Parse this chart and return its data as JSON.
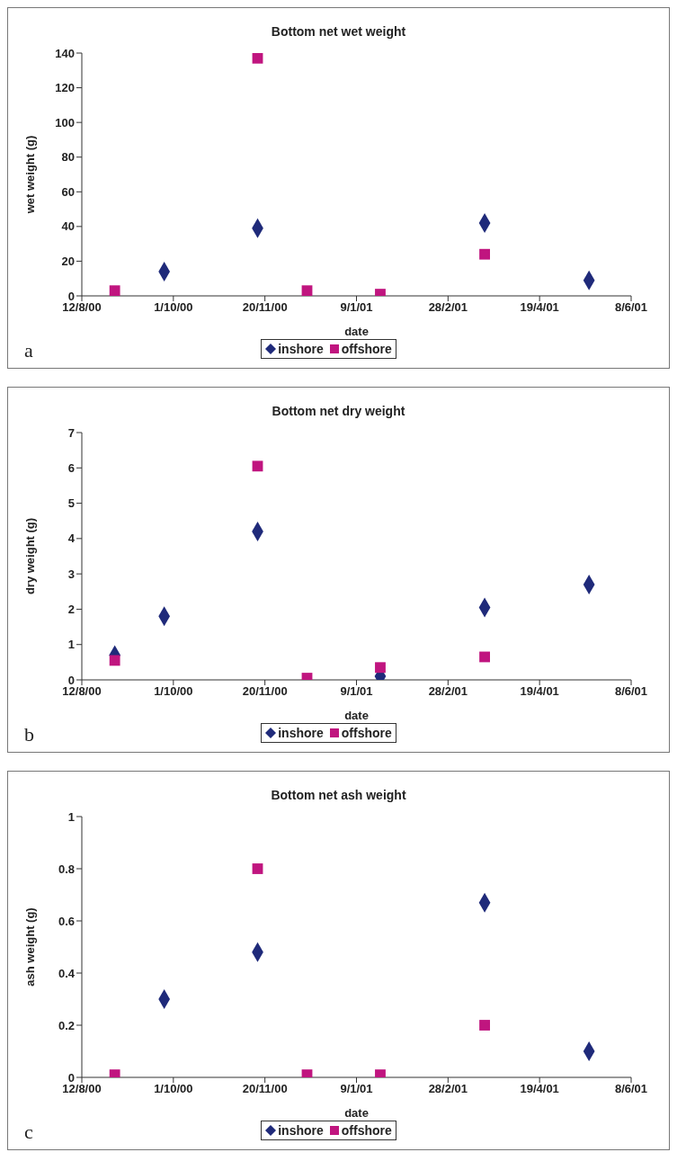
{
  "chart_data": [
    {
      "type": "scatter",
      "title": "Bottom net wet weight",
      "xlabel": "date",
      "ylabel": "wet weight (g)",
      "annotations": [
        "a"
      ],
      "x": [
        "2000-08-30",
        "2000-09-26",
        "2000-11-16",
        "2000-12-13",
        "2001-01-22",
        "2001-03-20",
        "2001-05-16"
      ],
      "series": [
        {
          "name": "inshore",
          "color": "#1f2a7a",
          "marker": "diamond",
          "values": [
            null,
            14,
            39,
            null,
            null,
            42,
            9
          ]
        },
        {
          "name": "offshore",
          "color": "#c0157f",
          "marker": "square",
          "values": [
            3,
            null,
            137,
            3,
            1,
            24,
            null
          ]
        }
      ],
      "xlim": [
        "2000-08-12",
        "2001-06-08"
      ],
      "xticks": [
        {
          "value": "2000-08-12",
          "label": "12/8/00"
        },
        {
          "value": "2000-10-01",
          "label": "1/10/00"
        },
        {
          "value": "2000-11-20",
          "label": "20/11/00"
        },
        {
          "value": "2001-01-09",
          "label": "9/1/01"
        },
        {
          "value": "2001-02-28",
          "label": "28/2/01"
        },
        {
          "value": "2001-04-19",
          "label": "19/4/01"
        },
        {
          "value": "2001-06-08",
          "label": "8/6/01"
        }
      ],
      "ylim": [
        0,
        140
      ],
      "yticks": [
        0,
        20,
        40,
        60,
        80,
        100,
        120,
        140
      ],
      "grid": false,
      "legend": "bottom"
    },
    {
      "type": "scatter",
      "title": "Bottom net dry weight",
      "xlabel": "date",
      "ylabel": "dry weight (g)",
      "annotations": [
        "b"
      ],
      "x": [
        "2000-08-30",
        "2000-09-26",
        "2000-11-16",
        "2000-12-13",
        "2001-01-22",
        "2001-03-20",
        "2001-05-16"
      ],
      "series": [
        {
          "name": "inshore",
          "color": "#1f2a7a",
          "marker": "diamond",
          "values": [
            0.7,
            1.8,
            4.2,
            null,
            0.1,
            2.05,
            2.7
          ]
        },
        {
          "name": "offshore",
          "color": "#c0157f",
          "marker": "square",
          "values": [
            0.55,
            null,
            6.05,
            0.05,
            0.35,
            0.65,
            null
          ]
        }
      ],
      "xlim": [
        "2000-08-12",
        "2001-06-08"
      ],
      "xticks": [
        {
          "value": "2000-08-12",
          "label": "12/8/00"
        },
        {
          "value": "2000-10-01",
          "label": "1/10/00"
        },
        {
          "value": "2000-11-20",
          "label": "20/11/00"
        },
        {
          "value": "2001-01-09",
          "label": "9/1/01"
        },
        {
          "value": "2001-02-28",
          "label": "28/2/01"
        },
        {
          "value": "2001-04-19",
          "label": "19/4/01"
        },
        {
          "value": "2001-06-08",
          "label": "8/6/01"
        }
      ],
      "ylim": [
        0,
        7
      ],
      "yticks": [
        0,
        1,
        2,
        3,
        4,
        5,
        6,
        7
      ],
      "grid": false,
      "legend": "bottom"
    },
    {
      "type": "scatter",
      "title": "Bottom net ash weight",
      "xlabel": "date",
      "ylabel": "ash weight (g)",
      "annotations": [
        "c"
      ],
      "x": [
        "2000-08-30",
        "2000-09-26",
        "2000-11-16",
        "2000-12-13",
        "2001-01-22",
        "2001-03-20",
        "2001-05-16"
      ],
      "series": [
        {
          "name": "inshore",
          "color": "#1f2a7a",
          "marker": "diamond",
          "values": [
            null,
            0.3,
            0.48,
            null,
            null,
            0.67,
            0.1
          ]
        },
        {
          "name": "offshore",
          "color": "#c0157f",
          "marker": "square",
          "values": [
            0.01,
            null,
            0.8,
            0.01,
            0.01,
            0.2,
            null
          ]
        }
      ],
      "xlim": [
        "2000-08-12",
        "2001-06-08"
      ],
      "xticks": [
        {
          "value": "2000-08-12",
          "label": "12/8/00"
        },
        {
          "value": "2000-10-01",
          "label": "1/10/00"
        },
        {
          "value": "2000-11-20",
          "label": "20/11/00"
        },
        {
          "value": "2001-01-09",
          "label": "9/1/01"
        },
        {
          "value": "2001-02-28",
          "label": "28/2/01"
        },
        {
          "value": "2001-04-19",
          "label": "19/4/01"
        },
        {
          "value": "2001-06-08",
          "label": "8/6/01"
        }
      ],
      "ylim": [
        0,
        1
      ],
      "yticks": [
        0,
        0.2,
        0.4,
        0.6,
        0.8,
        1
      ],
      "grid": false,
      "legend": "bottom"
    }
  ]
}
